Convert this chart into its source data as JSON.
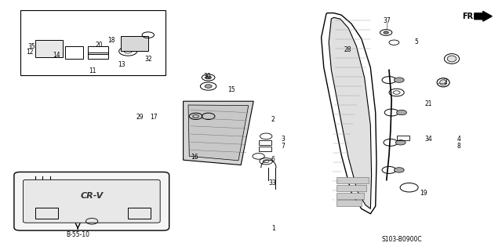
{
  "title": "",
  "bg_color": "#ffffff",
  "line_color": "#000000",
  "fig_width": 6.4,
  "fig_height": 3.19,
  "dpi": 100,
  "bottom_left_label": "B-55-10",
  "bottom_right_label": "S103-B0900C",
  "fr_label": "FR."
}
